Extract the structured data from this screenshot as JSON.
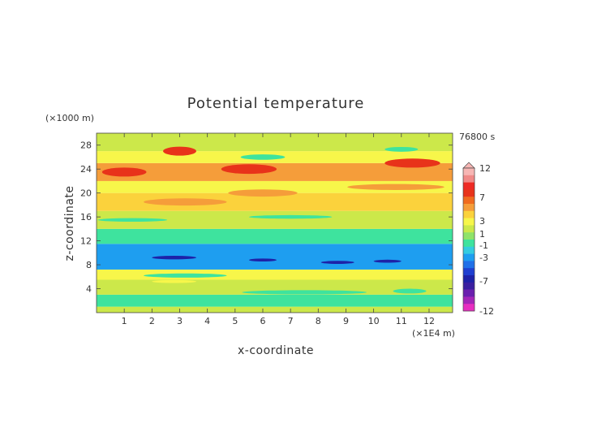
{
  "chart_data": {
    "type": "heatmap",
    "title": "Potential temperature",
    "xlabel": "x-coordinate",
    "ylabel": "z-coordinate",
    "x_unit": "(×1E4 m)",
    "y_unit": "(×1000 m)",
    "time_label": "76800 s",
    "xlim": [
      0,
      12.85
    ],
    "ylim": [
      0,
      30
    ],
    "x_ticks": [
      1,
      2,
      3,
      4,
      5,
      6,
      7,
      8,
      9,
      10,
      11,
      12
    ],
    "y_ticks": [
      4,
      8,
      12,
      16,
      20,
      24,
      28
    ],
    "colorbar": {
      "levels": [
        12,
        7,
        3,
        1,
        -1,
        -3,
        -7,
        -12
      ],
      "colors": [
        "#f7b6b4",
        "#f08a88",
        "#ee2a24",
        "#e8331a",
        "#f06b1f",
        "#f59d3a",
        "#fbd23c",
        "#f7f64a",
        "#cce84a",
        "#8fe36a",
        "#3ee39e",
        "#34cce0",
        "#1e9ef0",
        "#2070e8",
        "#1f3fd0",
        "#1d22a8",
        "#3a1fa0",
        "#6a1fae",
        "#a425b8",
        "#e72ec0"
      ]
    },
    "bands": [
      {
        "z": [
          0.0,
          1.0
        ],
        "level": 0
      },
      {
        "z": [
          1.0,
          3.0
        ],
        "level": -1
      },
      {
        "z": [
          3.0,
          5.5
        ],
        "level": 0
      },
      {
        "z": [
          5.5,
          7.2
        ],
        "level": 1
      },
      {
        "z": [
          7.2,
          11.5
        ],
        "level": -3
      },
      {
        "z": [
          11.5,
          14.0
        ],
        "level": -1
      },
      {
        "z": [
          14.0,
          17.0
        ],
        "level": 0
      },
      {
        "z": [
          17.0,
          20.0
        ],
        "level": 2
      },
      {
        "z": [
          20.0,
          22.0
        ],
        "level": 1
      },
      {
        "z": [
          22.0,
          25.0
        ],
        "level": 3
      },
      {
        "z": [
          25.0,
          27.0
        ],
        "level": 1
      },
      {
        "z": [
          27.0,
          30.0
        ],
        "level": 0
      }
    ],
    "features": [
      {
        "x": 3.2,
        "z": 6.2,
        "w": 3.0,
        "h": 0.7,
        "level": -1
      },
      {
        "x": 7.5,
        "z": 3.4,
        "w": 4.5,
        "h": 0.7,
        "level": -1
      },
      {
        "x": 11.3,
        "z": 3.6,
        "w": 1.2,
        "h": 0.8,
        "level": -1
      },
      {
        "x": 2.8,
        "z": 5.2,
        "w": 1.6,
        "h": 0.5,
        "level": 1
      },
      {
        "x": 2.8,
        "z": 9.2,
        "w": 1.6,
        "h": 0.6,
        "level": -7
      },
      {
        "x": 6.0,
        "z": 8.8,
        "w": 1.0,
        "h": 0.5,
        "level": -7
      },
      {
        "x": 8.7,
        "z": 8.4,
        "w": 1.2,
        "h": 0.5,
        "level": -7
      },
      {
        "x": 10.5,
        "z": 8.6,
        "w": 1.0,
        "h": 0.5,
        "level": -7
      },
      {
        "x": 1.0,
        "z": 23.5,
        "w": 1.6,
        "h": 1.5,
        "level": 5
      },
      {
        "x": 3.0,
        "z": 27.0,
        "w": 1.2,
        "h": 1.5,
        "level": 5
      },
      {
        "x": 5.5,
        "z": 24.0,
        "w": 2.0,
        "h": 1.6,
        "level": 5
      },
      {
        "x": 11.4,
        "z": 25.0,
        "w": 2.0,
        "h": 1.5,
        "level": 5
      },
      {
        "x": 11.0,
        "z": 27.3,
        "w": 1.2,
        "h": 0.8,
        "level": -1
      },
      {
        "x": 6.0,
        "z": 26.0,
        "w": 1.6,
        "h": 0.9,
        "level": -1
      },
      {
        "x": 10.8,
        "z": 21.0,
        "w": 3.5,
        "h": 1.0,
        "level": 3
      },
      {
        "x": 3.2,
        "z": 18.5,
        "w": 3.0,
        "h": 1.2,
        "level": 3
      },
      {
        "x": 6.0,
        "z": 20.0,
        "w": 2.5,
        "h": 1.2,
        "level": 3
      },
      {
        "x": 1.3,
        "z": 15.5,
        "w": 2.5,
        "h": 0.6,
        "level": -1
      },
      {
        "x": 7.0,
        "z": 16.0,
        "w": 3.0,
        "h": 0.6,
        "level": -1
      }
    ]
  }
}
